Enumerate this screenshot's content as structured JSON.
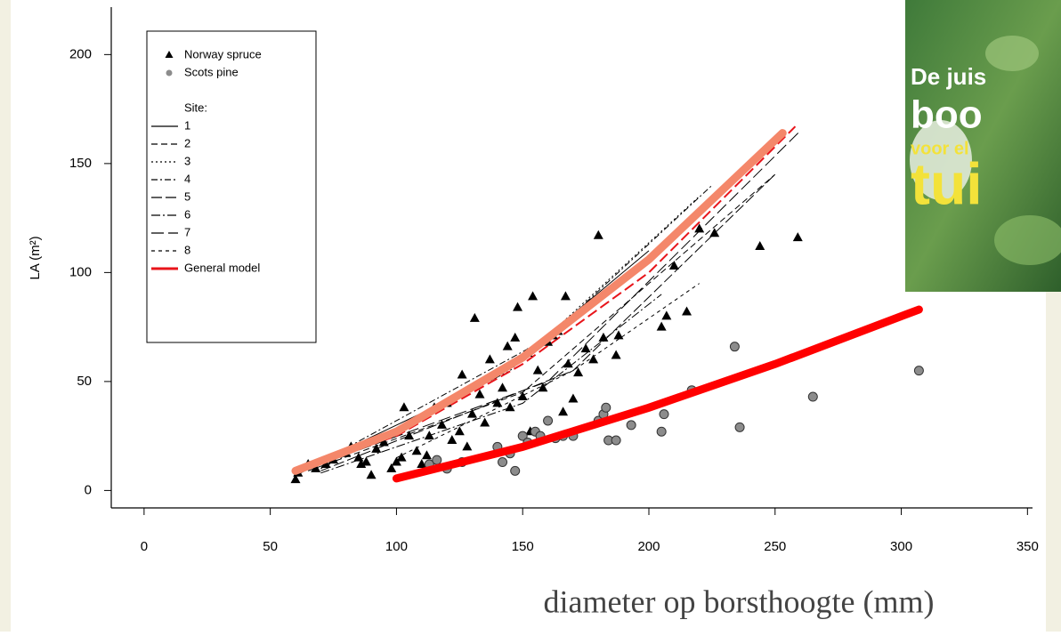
{
  "chart_data": {
    "type": "scatter",
    "ylabel": "LA (m²)",
    "xlabel": "diameter op borsthoogte (mm)",
    "xlim": [
      -13,
      352
    ],
    "xticks": [
      0,
      50,
      100,
      150,
      200,
      250,
      300,
      350
    ],
    "ylim": [
      -8,
      223
    ],
    "yticks": [
      0,
      50,
      100,
      150,
      200
    ],
    "legend_title": "Site:",
    "series": [
      {
        "name": "Norway spruce",
        "kind": "points",
        "marker": "triangle",
        "color": "#000000",
        "x": [
          60,
          61,
          65,
          68,
          72,
          75,
          80,
          82,
          85,
          86,
          88,
          90,
          92,
          95,
          98,
          100,
          102,
          103,
          105,
          108,
          110,
          112,
          113,
          115,
          118,
          120,
          122,
          125,
          126,
          128,
          130,
          131,
          133,
          135,
          137,
          140,
          142,
          144,
          145,
          147,
          148,
          150,
          152,
          153,
          154,
          156,
          158,
          160,
          162,
          164,
          166,
          167,
          168,
          170,
          172,
          175,
          178,
          180,
          182,
          187,
          188,
          205,
          207,
          210,
          215,
          220,
          226,
          244,
          259
        ],
        "values": [
          5,
          8,
          12,
          10,
          12,
          14,
          17,
          20,
          15,
          12,
          13,
          7,
          19,
          22,
          10,
          13,
          15,
          38,
          25,
          18,
          12,
          16,
          25,
          38,
          30,
          40,
          23,
          27,
          53,
          20,
          35,
          79,
          44,
          31,
          60,
          40,
          47,
          66,
          38,
          70,
          84,
          43,
          63,
          27,
          89,
          55,
          47,
          68,
          71,
          73,
          36,
          89,
          58,
          42,
          54,
          65,
          60,
          117,
          70,
          62,
          71,
          75,
          80,
          103,
          82,
          120,
          118,
          112,
          116
        ]
      },
      {
        "name": "Scots pine",
        "kind": "points",
        "marker": "circle",
        "color": "#8c8c8c",
        "x": [
          113,
          116,
          120,
          126,
          140,
          142,
          145,
          147,
          150,
          152,
          155,
          157,
          160,
          163,
          166,
          170,
          180,
          182,
          183,
          184,
          187,
          193,
          205,
          206,
          217,
          234,
          236,
          265,
          307
        ],
        "values": [
          12,
          14,
          10,
          13,
          20,
          13,
          17,
          9,
          25,
          22,
          27,
          25,
          32,
          24,
          25,
          25,
          32,
          35,
          38,
          23,
          23,
          30,
          27,
          35,
          46,
          66,
          29,
          43,
          55
        ]
      },
      {
        "name": "1",
        "kind": "line",
        "color": "#000000",
        "dash": "none",
        "x": [
          60,
          140,
          200
        ],
        "values": [
          8,
          52,
          110
        ]
      },
      {
        "name": "2",
        "kind": "line",
        "color": "#000000",
        "dash": "7,4",
        "x": [
          65,
          150,
          250
        ],
        "values": [
          9,
          45,
          145
        ]
      },
      {
        "name": "3",
        "kind": "line",
        "color": "#000000",
        "dash": "2,3",
        "x": [
          70,
          145,
          220
        ],
        "values": [
          10,
          55,
          135
        ]
      },
      {
        "name": "4",
        "kind": "line",
        "color": "#000000",
        "dash": "7,3,2,3",
        "x": [
          62,
          160,
          225
        ],
        "values": [
          8,
          70,
          140
        ]
      },
      {
        "name": "5",
        "kind": "line",
        "color": "#000000",
        "dash": "12,4",
        "x": [
          70,
          170,
          250
        ],
        "values": [
          9,
          55,
          145
        ]
      },
      {
        "name": "6",
        "kind": "line",
        "color": "#000000",
        "dash": "10,3,2,3",
        "x": [
          70,
          150,
          205
        ],
        "values": [
          8,
          40,
          90
        ]
      },
      {
        "name": "7",
        "kind": "line",
        "color": "#000000",
        "dash": "14,5",
        "x": [
          60,
          160,
          260
        ],
        "values": [
          8,
          50,
          165
        ]
      },
      {
        "name": "8",
        "kind": "line",
        "color": "#000000",
        "dash": "4,4",
        "x": [
          100,
          170,
          220
        ],
        "values": [
          15,
          55,
          95
        ]
      },
      {
        "name": "General model",
        "kind": "line",
        "color": "#e8141a",
        "dash": "12,5",
        "x": [
          60,
          100,
          150,
          200,
          258
        ],
        "values": [
          9,
          25,
          58,
          100,
          167
        ]
      }
    ],
    "overlay_curves": [
      {
        "color": "#f4876a",
        "x": [
          60,
          100,
          150,
          200,
          253
        ],
        "values": [
          9,
          27,
          61,
          106,
          164
        ]
      },
      {
        "color": "#ff0000",
        "x": [
          100,
          150,
          200,
          250,
          307
        ],
        "values": [
          5.5,
          20,
          38,
          58,
          83
        ]
      }
    ],
    "book_cover": {
      "lines": [
        "De juis",
        "boo",
        "voor el",
        "tui"
      ]
    }
  }
}
